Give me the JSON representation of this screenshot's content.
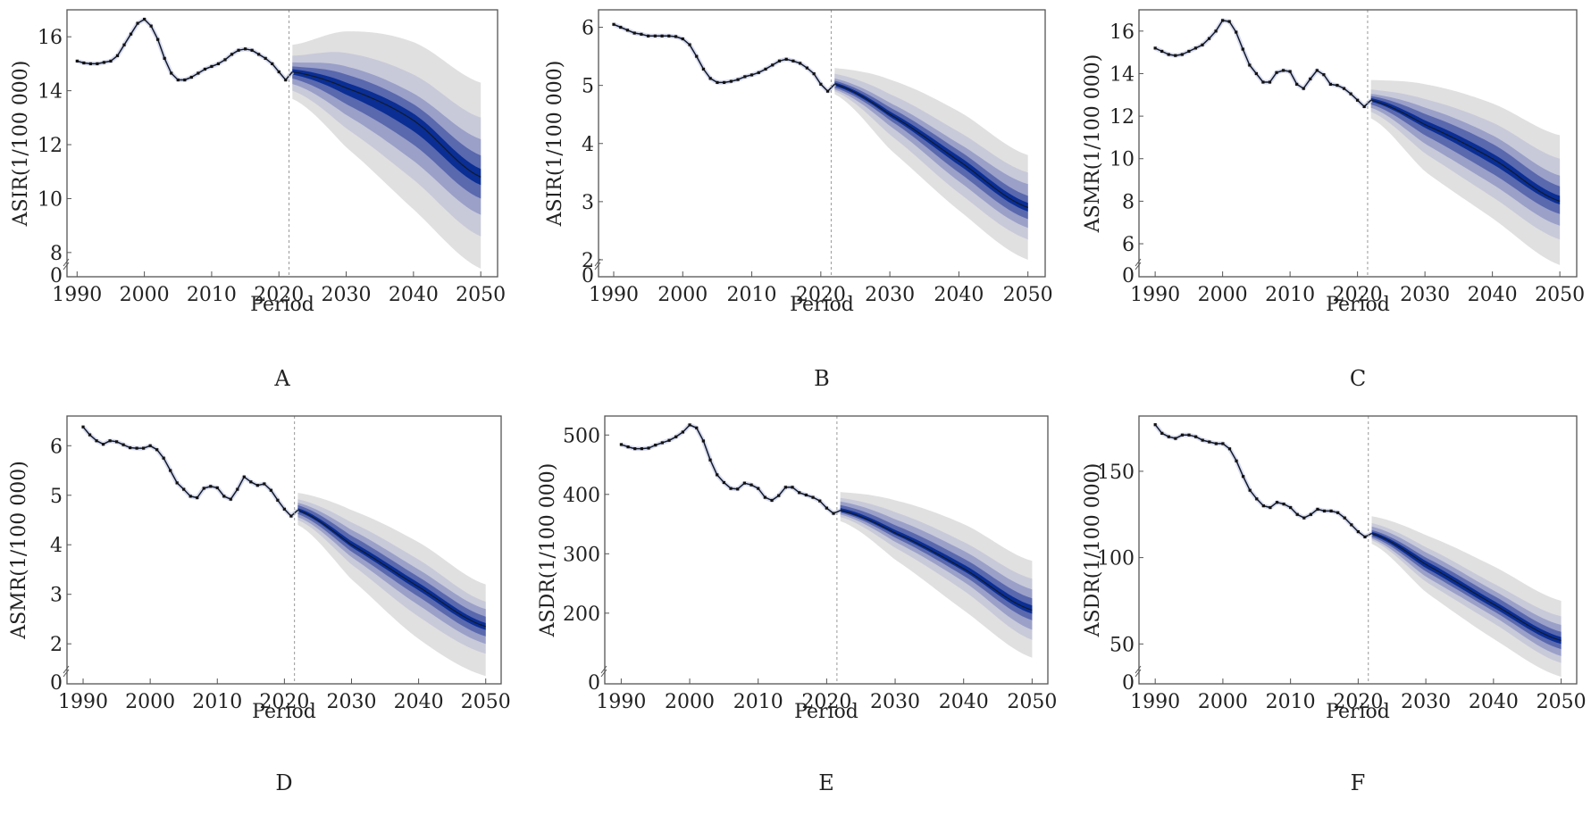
{
  "figure": {
    "x_axis_title": "Period",
    "forecast_start_year": 2021.5,
    "band_colors": {
      "outer": "#e0e0e0",
      "band2": "#c8cad9",
      "band3": "#9aa0c8",
      "band4": "#5a68ae",
      "inner": "#0a2e94",
      "line": "#111a2e",
      "divider": "#999999"
    },
    "x_ticks": [
      1990,
      2000,
      2010,
      2020,
      2030,
      2040,
      2050
    ]
  },
  "chart_data": [
    {
      "type": "line",
      "panel": "A",
      "title": "A",
      "xlabel": "Period",
      "ylabel": "ASIR(1/100 000)",
      "y_ticks": [
        8,
        10,
        12,
        14,
        16
      ],
      "axis_break_label": "0",
      "ylim": [
        7.3,
        17.0
      ],
      "xlim": [
        1988.5,
        2052.5
      ],
      "observed": {
        "x": [
          1990,
          1991,
          1992,
          1993,
          1994,
          1995,
          1996,
          1997,
          1998,
          1999,
          2000,
          2001,
          2002,
          2003,
          2004,
          2005,
          2006,
          2007,
          2008,
          2009,
          2010,
          2011,
          2012,
          2013,
          2014,
          2015,
          2016,
          2017,
          2018,
          2019,
          2020,
          2021
        ],
        "y": [
          15.1,
          15.03,
          15.0,
          15.0,
          15.05,
          15.1,
          15.3,
          15.7,
          16.1,
          16.5,
          16.65,
          16.4,
          15.9,
          15.2,
          14.65,
          14.4,
          14.4,
          14.5,
          14.65,
          14.8,
          14.9,
          15.0,
          15.15,
          15.35,
          15.5,
          15.55,
          15.5,
          15.35,
          15.2,
          15.0,
          14.7,
          14.4
        ]
      },
      "forecast": {
        "x": [
          2022,
          2030,
          2040,
          2050
        ],
        "mean": [
          14.7,
          14.1,
          12.9,
          10.8
        ],
        "bands": [
          {
            "level": "outer",
            "lower": [
              13.7,
              11.9,
              9.6,
              7.4
            ],
            "upper": [
              15.7,
              16.2,
              15.8,
              14.3
            ]
          },
          {
            "level": "band2",
            "lower": [
              14.0,
              12.6,
              10.7,
              8.6
            ],
            "upper": [
              15.3,
              15.4,
              14.6,
              13.0
            ]
          },
          {
            "level": "band3",
            "lower": [
              14.25,
              13.1,
              11.4,
              9.4
            ],
            "upper": [
              15.05,
              14.9,
              13.9,
              12.2
            ]
          },
          {
            "level": "band4",
            "lower": [
              14.45,
              13.5,
              12.0,
              10.0
            ],
            "upper": [
              14.9,
              14.6,
              13.5,
              11.6
            ]
          },
          {
            "level": "inner",
            "lower": [
              14.6,
              13.85,
              12.5,
              10.5
            ],
            "upper": [
              14.8,
              14.3,
              13.15,
              11.1
            ]
          }
        ]
      }
    },
    {
      "type": "line",
      "panel": "B",
      "title": "B",
      "xlabel": "Period",
      "ylabel": "ASIR(1/100 000)",
      "y_ticks": [
        2,
        3,
        4,
        5,
        6
      ],
      "axis_break_label": "0",
      "ylim": [
        1.8,
        6.3
      ],
      "xlim": [
        1987.8,
        2052.5
      ],
      "observed": {
        "x": [
          1990,
          1991,
          1992,
          1993,
          1994,
          1995,
          1996,
          1997,
          1998,
          1999,
          2000,
          2001,
          2002,
          2003,
          2004,
          2005,
          2006,
          2007,
          2008,
          2009,
          2010,
          2011,
          2012,
          2013,
          2014,
          2015,
          2016,
          2017,
          2018,
          2019,
          2020,
          2021
        ],
        "y": [
          6.05,
          6.0,
          5.95,
          5.9,
          5.88,
          5.85,
          5.85,
          5.85,
          5.85,
          5.84,
          5.8,
          5.7,
          5.5,
          5.28,
          5.12,
          5.05,
          5.05,
          5.07,
          5.1,
          5.15,
          5.18,
          5.22,
          5.28,
          5.35,
          5.42,
          5.45,
          5.42,
          5.38,
          5.3,
          5.2,
          5.02,
          4.9
        ]
      },
      "forecast": {
        "x": [
          2022,
          2030,
          2040,
          2050
        ],
        "mean": [
          5.02,
          4.5,
          3.7,
          2.9
        ],
        "bands": [
          {
            "level": "outer",
            "lower": [
              4.85,
              3.9,
              2.85,
              2.0
            ],
            "upper": [
              5.3,
              5.1,
              4.55,
              3.8
            ]
          },
          {
            "level": "band2",
            "lower": [
              4.9,
              4.15,
              3.15,
              2.35
            ],
            "upper": [
              5.2,
              4.85,
              4.2,
              3.5
            ]
          },
          {
            "level": "band3",
            "lower": [
              4.93,
              4.3,
              3.35,
              2.55
            ],
            "upper": [
              5.12,
              4.7,
              4.0,
              3.3
            ]
          },
          {
            "level": "band4",
            "lower": [
              4.96,
              4.4,
              3.5,
              2.7
            ],
            "upper": [
              5.08,
              4.62,
              3.88,
              3.1
            ]
          },
          {
            "level": "inner",
            "lower": [
              4.99,
              4.46,
              3.63,
              2.83
            ],
            "upper": [
              5.05,
              4.55,
              3.78,
              2.98
            ]
          }
        ]
      }
    },
    {
      "type": "line",
      "panel": "C",
      "title": "C",
      "xlabel": "Period",
      "ylabel": "ASMR(1/100 000)",
      "y_ticks": [
        6,
        8,
        10,
        12,
        14,
        16
      ],
      "axis_break_label": "0",
      "ylim": [
        4.7,
        17.0
      ],
      "xlim": [
        1987.6,
        2052.5
      ],
      "observed": {
        "x": [
          1990,
          1991,
          1992,
          1993,
          1994,
          1995,
          1996,
          1997,
          1998,
          1999,
          2000,
          2001,
          2002,
          2003,
          2004,
          2005,
          2006,
          2007,
          2008,
          2009,
          2010,
          2011,
          2012,
          2013,
          2014,
          2015,
          2016,
          2017,
          2018,
          2019,
          2020,
          2021
        ],
        "y": [
          15.2,
          15.05,
          14.9,
          14.85,
          14.9,
          15.05,
          15.2,
          15.35,
          15.65,
          16.0,
          16.5,
          16.45,
          15.95,
          15.15,
          14.4,
          14.0,
          13.6,
          13.6,
          14.05,
          14.15,
          14.1,
          13.5,
          13.3,
          13.75,
          14.15,
          13.95,
          13.5,
          13.45,
          13.3,
          13.05,
          12.75,
          12.45
        ]
      },
      "forecast": {
        "x": [
          2022,
          2030,
          2040,
          2050
        ],
        "mean": [
          12.75,
          11.6,
          10.0,
          8.0
        ],
        "bands": [
          {
            "level": "outer",
            "lower": [
              11.9,
              9.4,
              7.2,
              5.0
            ],
            "upper": [
              13.7,
              13.5,
              12.6,
              11.1
            ]
          },
          {
            "level": "band2",
            "lower": [
              12.2,
              10.25,
              8.2,
              6.2
            ],
            "upper": [
              13.25,
              12.8,
              11.7,
              10.0
            ]
          },
          {
            "level": "band3",
            "lower": [
              12.4,
              10.7,
              8.8,
              6.85
            ],
            "upper": [
              13.05,
              12.4,
              11.1,
              9.2
            ]
          },
          {
            "level": "band4",
            "lower": [
              12.55,
              11.1,
              9.3,
              7.4
            ],
            "upper": [
              12.95,
              12.1,
              10.7,
              8.7
            ]
          },
          {
            "level": "inner",
            "lower": [
              12.68,
              11.45,
              9.75,
              7.85
            ],
            "upper": [
              12.85,
              11.8,
              10.25,
              8.25
            ]
          }
        ]
      }
    },
    {
      "type": "line",
      "panel": "D",
      "title": "D",
      "xlabel": "Period",
      "ylabel": "ASMR(1/100 000)",
      "y_ticks": [
        2,
        3,
        4,
        5,
        6
      ],
      "axis_break_label": "0",
      "ylim": [
        1.3,
        6.6
      ],
      "xlim": [
        1987.6,
        2052.3
      ],
      "observed": {
        "x": [
          1990,
          1991,
          1992,
          1993,
          1994,
          1995,
          1996,
          1997,
          1998,
          1999,
          2000,
          2001,
          2002,
          2003,
          2004,
          2005,
          2006,
          2007,
          2008,
          2009,
          2010,
          2011,
          2012,
          2013,
          2014,
          2015,
          2016,
          2017,
          2018,
          2019,
          2020,
          2021
        ],
        "y": [
          6.38,
          6.22,
          6.1,
          6.03,
          6.1,
          6.08,
          6.02,
          5.96,
          5.95,
          5.95,
          6.0,
          5.92,
          5.75,
          5.5,
          5.25,
          5.12,
          4.98,
          4.95,
          5.14,
          5.18,
          5.15,
          4.98,
          4.92,
          5.12,
          5.37,
          5.27,
          5.2,
          5.23,
          5.1,
          4.9,
          4.72,
          4.58
        ]
      },
      "forecast": {
        "x": [
          2022,
          2030,
          2040,
          2050
        ],
        "mean": [
          4.7,
          4.0,
          3.15,
          2.35
        ],
        "bands": [
          {
            "level": "outer",
            "lower": [
              4.4,
              3.3,
              2.1,
              1.35
            ],
            "upper": [
              5.05,
              4.7,
              4.05,
              3.2
            ]
          },
          {
            "level": "band2",
            "lower": [
              4.5,
              3.6,
              2.55,
              1.8
            ],
            "upper": [
              4.92,
              4.45,
              3.7,
              2.85
            ]
          },
          {
            "level": "band3",
            "lower": [
              4.56,
              3.75,
              2.78,
              2.0
            ],
            "upper": [
              4.85,
              4.3,
              3.5,
              2.7
            ]
          },
          {
            "level": "band4",
            "lower": [
              4.62,
              3.86,
              2.95,
              2.15
            ],
            "upper": [
              4.8,
              4.18,
              3.35,
              2.55
            ]
          },
          {
            "level": "inner",
            "lower": [
              4.67,
              3.95,
              3.08,
              2.28
            ],
            "upper": [
              4.74,
              4.07,
              3.23,
              2.42
            ]
          }
        ]
      }
    },
    {
      "type": "line",
      "panel": "E",
      "title": "E",
      "xlabel": "Period",
      "ylabel": "ASDR(1/100 000)",
      "y_ticks": [
        200,
        300,
        400,
        500
      ],
      "axis_break_label": "0",
      "ylim": [
        90,
        532
      ],
      "xlim": [
        1987.6,
        2052.3
      ],
      "observed": {
        "x": [
          1990,
          1991,
          1992,
          1993,
          1994,
          1995,
          1996,
          1997,
          1998,
          1999,
          2000,
          2001,
          2002,
          2003,
          2004,
          2005,
          2006,
          2007,
          2008,
          2009,
          2010,
          2011,
          2012,
          2013,
          2014,
          2015,
          2016,
          2017,
          2018,
          2019,
          2020,
          2021
        ],
        "y": [
          484,
          480,
          477,
          477,
          478,
          483,
          487,
          491,
          497,
          505,
          517,
          512,
          490,
          458,
          433,
          420,
          410,
          409,
          419,
          416,
          410,
          395,
          390,
          398,
          412,
          412,
          403,
          399,
          395,
          389,
          377,
          368
        ]
      },
      "forecast": {
        "x": [
          2022,
          2030,
          2040,
          2050
        ],
        "mean": [
          373,
          335,
          275,
          205
        ],
        "bands": [
          {
            "level": "outer",
            "lower": [
              355,
              290,
              205,
              125
            ],
            "upper": [
              404,
              390,
              350,
              288
            ]
          },
          {
            "level": "band2",
            "lower": [
              362,
              310,
              238,
              155
            ],
            "upper": [
              394,
              370,
              320,
              258
            ]
          },
          {
            "level": "band3",
            "lower": [
              366,
              320,
              253,
              172
            ],
            "upper": [
              388,
              358,
              305,
              240
            ]
          },
          {
            "level": "band4",
            "lower": [
              369,
              327,
              263,
              188
            ],
            "upper": [
              382,
              348,
              292,
              225
            ]
          },
          {
            "level": "inner",
            "lower": [
              371,
              332,
              271,
              199
            ],
            "upper": [
              377,
              340,
              282,
              213
            ]
          }
        ]
      }
    },
    {
      "type": "line",
      "panel": "F",
      "title": "F",
      "xlabel": "Period",
      "ylabel": "ASDR(1/100 000)",
      "y_ticks": [
        50,
        100,
        150
      ],
      "axis_break_label": "0",
      "ylim": [
        30,
        182
      ],
      "xlim": [
        1987.6,
        2052.3
      ],
      "observed": {
        "x": [
          1990,
          1991,
          1992,
          1993,
          1994,
          1995,
          1996,
          1997,
          1998,
          1999,
          2000,
          2001,
          2002,
          2003,
          2004,
          2005,
          2006,
          2007,
          2008,
          2009,
          2010,
          2011,
          2012,
          2013,
          2014,
          2015,
          2016,
          2017,
          2018,
          2019,
          2020,
          2021
        ],
        "y": [
          177,
          172,
          170,
          169,
          171,
          171,
          170,
          168,
          167,
          166,
          166,
          163,
          156,
          147,
          139,
          134,
          130,
          129,
          132,
          131,
          129,
          125,
          123,
          125,
          128,
          127,
          127,
          126,
          123,
          119,
          115,
          112
        ]
      },
      "forecast": {
        "x": [
          2022,
          2030,
          2040,
          2050
        ],
        "mean": [
          114,
          96,
          73,
          52
        ],
        "bands": [
          {
            "level": "outer",
            "lower": [
              108,
              80,
              53,
              31
            ],
            "upper": [
              124,
              113,
              95,
              75
            ]
          },
          {
            "level": "band2",
            "lower": [
              110,
              86,
              62,
              39
            ],
            "upper": [
              120,
              106,
              85,
              66
            ]
          },
          {
            "level": "band3",
            "lower": [
              111,
              89,
              66,
              43
            ],
            "upper": [
              118,
              103,
              81,
              61
            ]
          },
          {
            "level": "band4",
            "lower": [
              112,
              92,
              69,
              47
            ],
            "upper": [
              116,
              100,
              78,
              57
            ]
          },
          {
            "level": "inner",
            "lower": [
              113,
              94,
              71,
              50
            ],
            "upper": [
              115,
              98,
              75,
              54
            ]
          }
        ]
      }
    }
  ]
}
